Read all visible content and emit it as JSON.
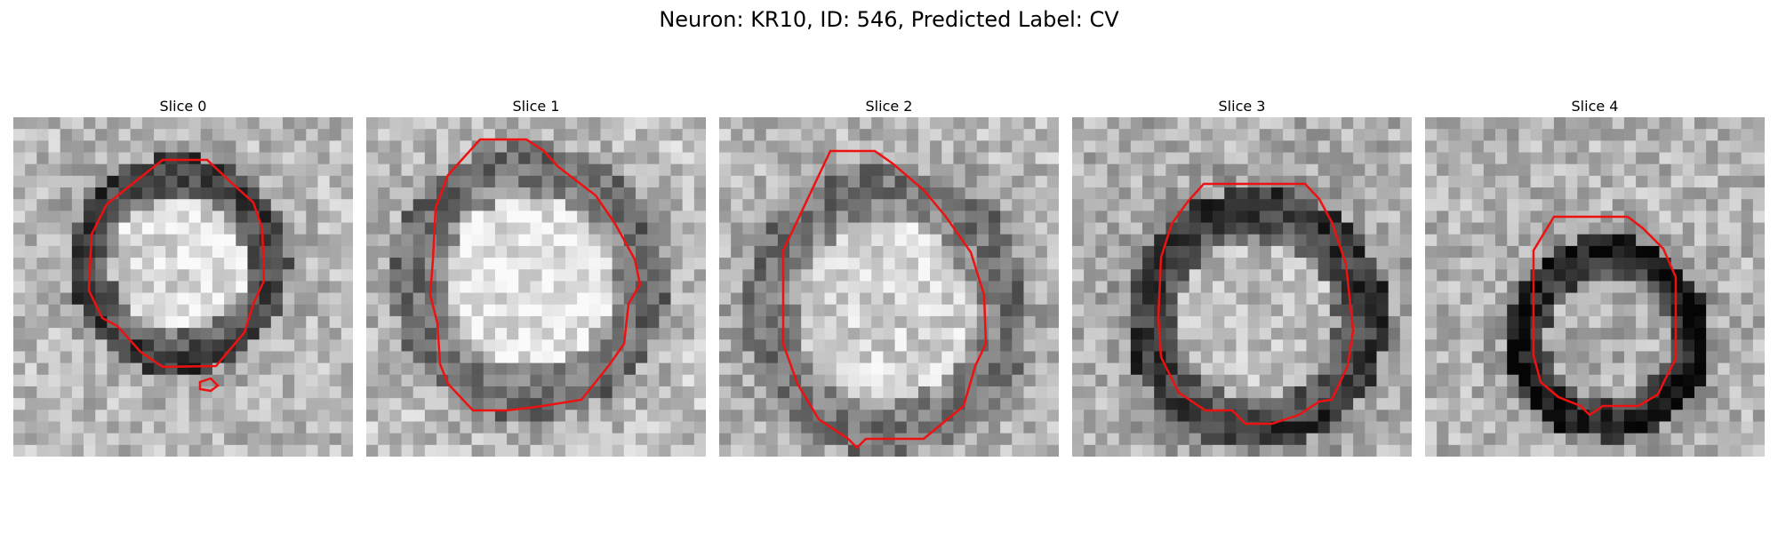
{
  "title": "Neuron: KR10, ID: 546, Predicted Label: CV",
  "contour_color": "#ee1111",
  "slices": [
    {
      "label": "Slice 0",
      "seed": 11,
      "core_level": 0.86,
      "ring_level": 0.24,
      "bg_level": 0.72
    },
    {
      "label": "Slice 1",
      "seed": 23,
      "core_level": 0.9,
      "ring_level": 0.42,
      "bg_level": 0.75
    },
    {
      "label": "Slice 2",
      "seed": 37,
      "core_level": 0.82,
      "ring_level": 0.45,
      "bg_level": 0.72
    },
    {
      "label": "Slice 3",
      "seed": 41,
      "core_level": 0.74,
      "ring_level": 0.22,
      "bg_level": 0.68
    },
    {
      "label": "Slice 4",
      "seed": 53,
      "core_level": 0.68,
      "ring_level": 0.1,
      "bg_level": 0.7
    }
  ]
}
